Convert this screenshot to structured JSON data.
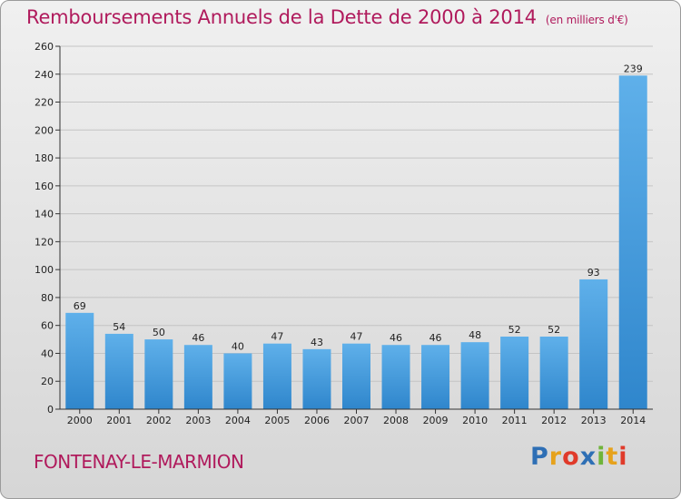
{
  "title": "Remboursements Annuels de la Dette de 2000 à 2014",
  "unit": "(en milliers d'€)",
  "location": "FONTENAY-LE-MARMION",
  "logo": {
    "text": "Proxiti",
    "colors": [
      "#2e6fb5",
      "#e6a21c",
      "#e03a2a",
      "#2e6fb5",
      "#6fb43a",
      "#e6a21c",
      "#e03a2a"
    ]
  },
  "colors": {
    "title": "#b01a5c",
    "bar_light": "#5fb0ea",
    "bar_dark": "#2f86cc"
  },
  "chart_data": {
    "type": "bar",
    "categories": [
      "2000",
      "2001",
      "2002",
      "2003",
      "2004",
      "2005",
      "2006",
      "2007",
      "2008",
      "2009",
      "2010",
      "2011",
      "2012",
      "2013",
      "2014"
    ],
    "values": [
      69,
      54,
      50,
      46,
      40,
      47,
      43,
      47,
      46,
      46,
      48,
      52,
      52,
      93,
      239
    ],
    "ylim": [
      0,
      260
    ],
    "yticks": [
      0,
      20,
      40,
      60,
      80,
      100,
      120,
      140,
      160,
      180,
      200,
      220,
      240,
      260
    ],
    "grid": true,
    "xlabel": "",
    "ylabel": ""
  }
}
